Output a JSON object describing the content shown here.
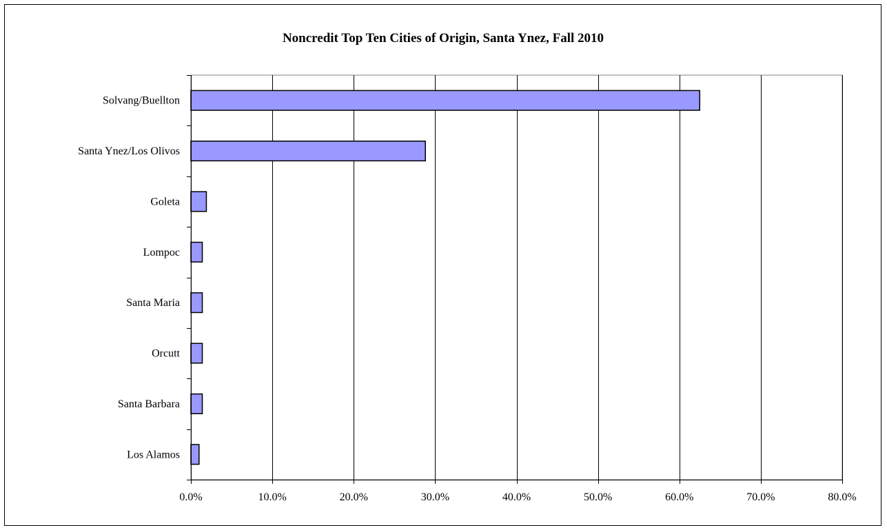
{
  "chart_data": {
    "type": "bar",
    "orientation": "horizontal",
    "title": "Noncredit Top Ten Cities of Origin, Santa Ynez, Fall 2010",
    "xlabel": "",
    "ylabel": "",
    "categories": [
      "Solvang/Buellton",
      "Santa Ynez/Los Olivos",
      "Goleta",
      "Lompoc",
      "Santa Maria",
      "Orcutt",
      "Santa Barbara",
      "Los Alamos"
    ],
    "values": [
      62.5,
      28.8,
      1.9,
      1.4,
      1.4,
      1.4,
      1.4,
      1.0
    ],
    "xlim": [
      0,
      80
    ],
    "xticks": [
      0,
      10,
      20,
      30,
      40,
      50,
      60,
      70,
      80
    ],
    "xtick_labels": [
      "0.0%",
      "10.0%",
      "20.0%",
      "30.0%",
      "40.0%",
      "50.0%",
      "60.0%",
      "70.0%",
      "80.0%"
    ],
    "grid": "vertical",
    "legend": "none",
    "colors": {
      "bar_fill": "#9999ff",
      "bar_stroke": "#000000",
      "grid": "#000000",
      "plot_border": "#808080"
    }
  }
}
